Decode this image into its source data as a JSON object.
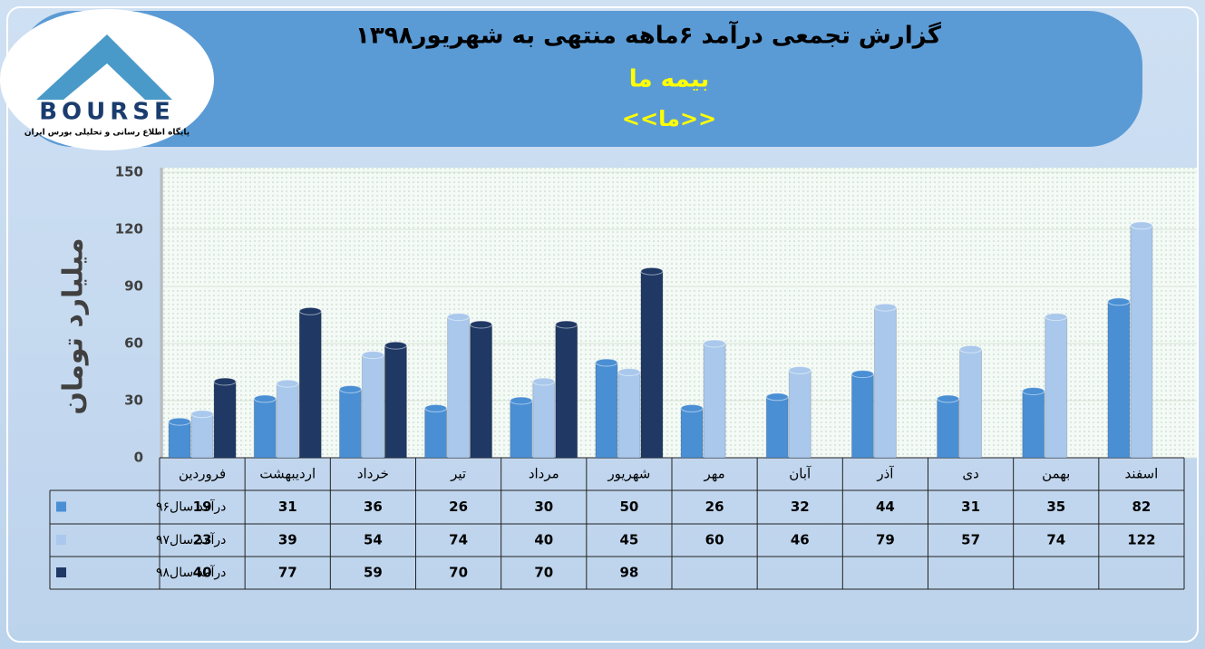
{
  "chart_data": {
    "type": "bar",
    "title": "گزارش تجمعی درآمد ۶ماهه منتهی به شهریور۱۳۹۸",
    "subtitle": "بیمه ما",
    "annotation": "<<ما>>",
    "logo": {
      "text": "BOURSE",
      "caption": "پایگاه اطلاع رسانی و تحلیلی بورس ایران"
    },
    "y_label": "میلیارد تومان",
    "categories": [
      "فروردین",
      "اردیبهشت",
      "خرداد",
      "تیر",
      "مرداد",
      "شهریور",
      "مهر",
      "آبان",
      "آذر",
      "دی",
      "بهمن",
      "اسفند"
    ],
    "series": [
      {
        "name": "درآمد سال۹۶",
        "color": "#4a8fd4",
        "values": [
          19,
          31,
          36,
          26,
          30,
          50,
          26,
          32,
          44,
          31,
          35,
          82
        ]
      },
      {
        "name": "درآمد سال۹۷",
        "color": "#a9c8ec",
        "values": [
          23,
          39,
          54,
          74,
          40,
          45,
          60,
          46,
          79,
          57,
          74,
          122
        ]
      },
      {
        "name": "درآمد سال۹۸",
        "color": "#1f3864",
        "values": [
          40,
          77,
          59,
          70,
          70,
          98,
          null,
          null,
          null,
          null,
          null,
          null
        ]
      }
    ],
    "ylim": [
      0,
      150
    ],
    "yticks": [
      0,
      30,
      60,
      90,
      120,
      150
    ],
    "grid": true
  }
}
